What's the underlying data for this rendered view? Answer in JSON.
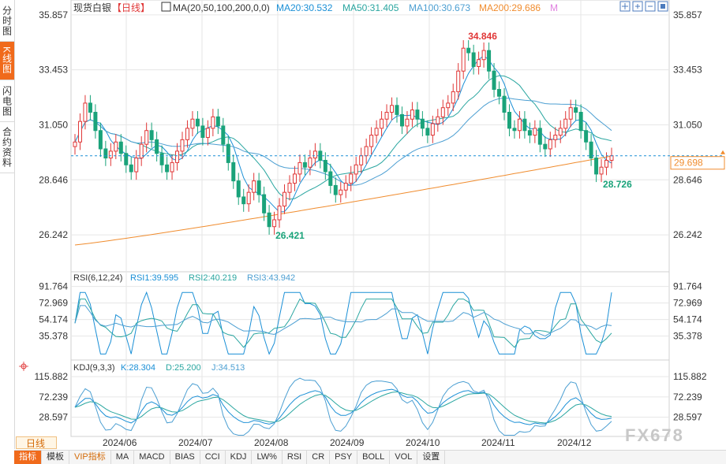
{
  "sidebar": {
    "tabs": [
      {
        "label": "分时图",
        "active": false
      },
      {
        "label": "K线图",
        "active": true
      },
      {
        "label": "闪电图",
        "active": false
      },
      {
        "label": "合约资料",
        "active": false
      }
    ]
  },
  "main_header": {
    "symbol": "现货白银",
    "period": "【日线】",
    "ma_params": "MA(20,50,100,200,0,0)",
    "ma20": "MA20:30.532",
    "ma50": "MA50:31.405",
    "ma100": "MA100:30.673",
    "ma200": "MA200:29.686",
    "m_label": "M"
  },
  "toolbar": {
    "icons": [
      "crosshair-icon",
      "zoom-in-icon",
      "zoom-out-icon",
      "box-icon",
      "left-icon",
      "right-icon"
    ]
  },
  "price_axis": {
    "ticks": [
      "35.857",
      "33.453",
      "31.050",
      "28.646",
      "26.242"
    ]
  },
  "current_price": "29.698",
  "annotations": {
    "high": "34.846",
    "low": "26.421",
    "recent_low": "28.726"
  },
  "rsi_header": {
    "label": "RSI(6,12,24)",
    "rsi1": "RSI1:39.595",
    "rsi2": "RSI2:40.219",
    "rsi3": "RSI3:43.942"
  },
  "rsi_axis": {
    "ticks": [
      "91.764",
      "72.969",
      "54.174",
      "35.378"
    ]
  },
  "kdj_header": {
    "label": "KDJ(9,3,3)",
    "k": "K:28.304",
    "d": "D:25.200",
    "j": "J:34.513"
  },
  "kdj_axis": {
    "ticks": [
      "115.882",
      "72.239",
      "28.597"
    ]
  },
  "x_axis": {
    "labels": [
      "2024/06",
      "2024/07",
      "2024/08",
      "2024/09",
      "2024/10",
      "2024/11",
      "2024/12"
    ]
  },
  "period_chip": "日线",
  "bottom_tabs": [
    "指标",
    "模板",
    "VIP指标",
    "MA",
    "MACD",
    "BIAS",
    "CCI",
    "KDJ",
    "LW%",
    "RSI",
    "CR",
    "PSY",
    "BOLL",
    "VOL",
    "设置"
  ],
  "watermark": "FX678",
  "colors": {
    "up": "#e03636",
    "down": "#1aa37a",
    "ma20": "#1a8fd6",
    "ma50": "#2aa6a0",
    "ma100": "#4c9fd2",
    "ma200": "#f08c2e",
    "axis_text": "#333333",
    "grid": "#e6e6e6",
    "current": "#f08c2e"
  },
  "chart_data": {
    "type": "candlestick",
    "y_range": [
      24.8,
      36.3
    ],
    "series": [
      {
        "name": "MA20",
        "value": 30.532
      },
      {
        "name": "MA50",
        "value": 31.405
      },
      {
        "name": "MA100",
        "value": 30.673
      },
      {
        "name": "MA200",
        "value": 29.686
      }
    ],
    "closes": [
      30.3,
      31.2,
      32.0,
      31.6,
      30.8,
      30.0,
      29.6,
      29.9,
      30.3,
      29.8,
      29.3,
      29.0,
      29.6,
      30.2,
      30.8,
      30.4,
      29.8,
      29.3,
      29.0,
      29.4,
      29.9,
      30.4,
      30.9,
      31.3,
      31.0,
      30.5,
      30.9,
      31.4,
      31.0,
      30.2,
      29.4,
      28.6,
      27.9,
      27.6,
      28.1,
      28.6,
      28.0,
      27.2,
      26.6,
      26.9,
      27.5,
      28.1,
      28.5,
      28.9,
      29.4,
      29.2,
      29.6,
      29.9,
      29.5,
      29.0,
      28.4,
      28.0,
      28.2,
      28.5,
      28.9,
      29.3,
      29.7,
      30.1,
      30.6,
      30.9,
      31.3,
      31.6,
      31.9,
      31.5,
      31.0,
      31.3,
      31.7,
      31.3,
      30.9,
      30.6,
      31.1,
      31.4,
      31.8,
      32.0,
      32.5,
      33.4,
      34.4,
      34.2,
      33.6,
      33.9,
      34.3,
      33.4,
      32.6,
      32.3,
      31.6,
      30.9,
      30.8,
      31.3,
      30.8,
      30.6,
      30.9,
      30.2,
      30.0,
      30.4,
      30.6,
      30.9,
      31.3,
      31.8,
      31.6,
      30.8,
      30.3,
      29.6,
      28.9,
      29.2,
      29.5,
      29.7
    ],
    "rsi": [
      {
        "name": "RSI1",
        "value": 39.595
      },
      {
        "name": "RSI2",
        "value": 40.219
      },
      {
        "name": "RSI3",
        "value": 43.942
      }
    ],
    "kdj": [
      {
        "name": "K",
        "value": 28.304
      },
      {
        "name": "D",
        "value": 25.2
      },
      {
        "name": "J",
        "value": 34.513
      }
    ]
  }
}
